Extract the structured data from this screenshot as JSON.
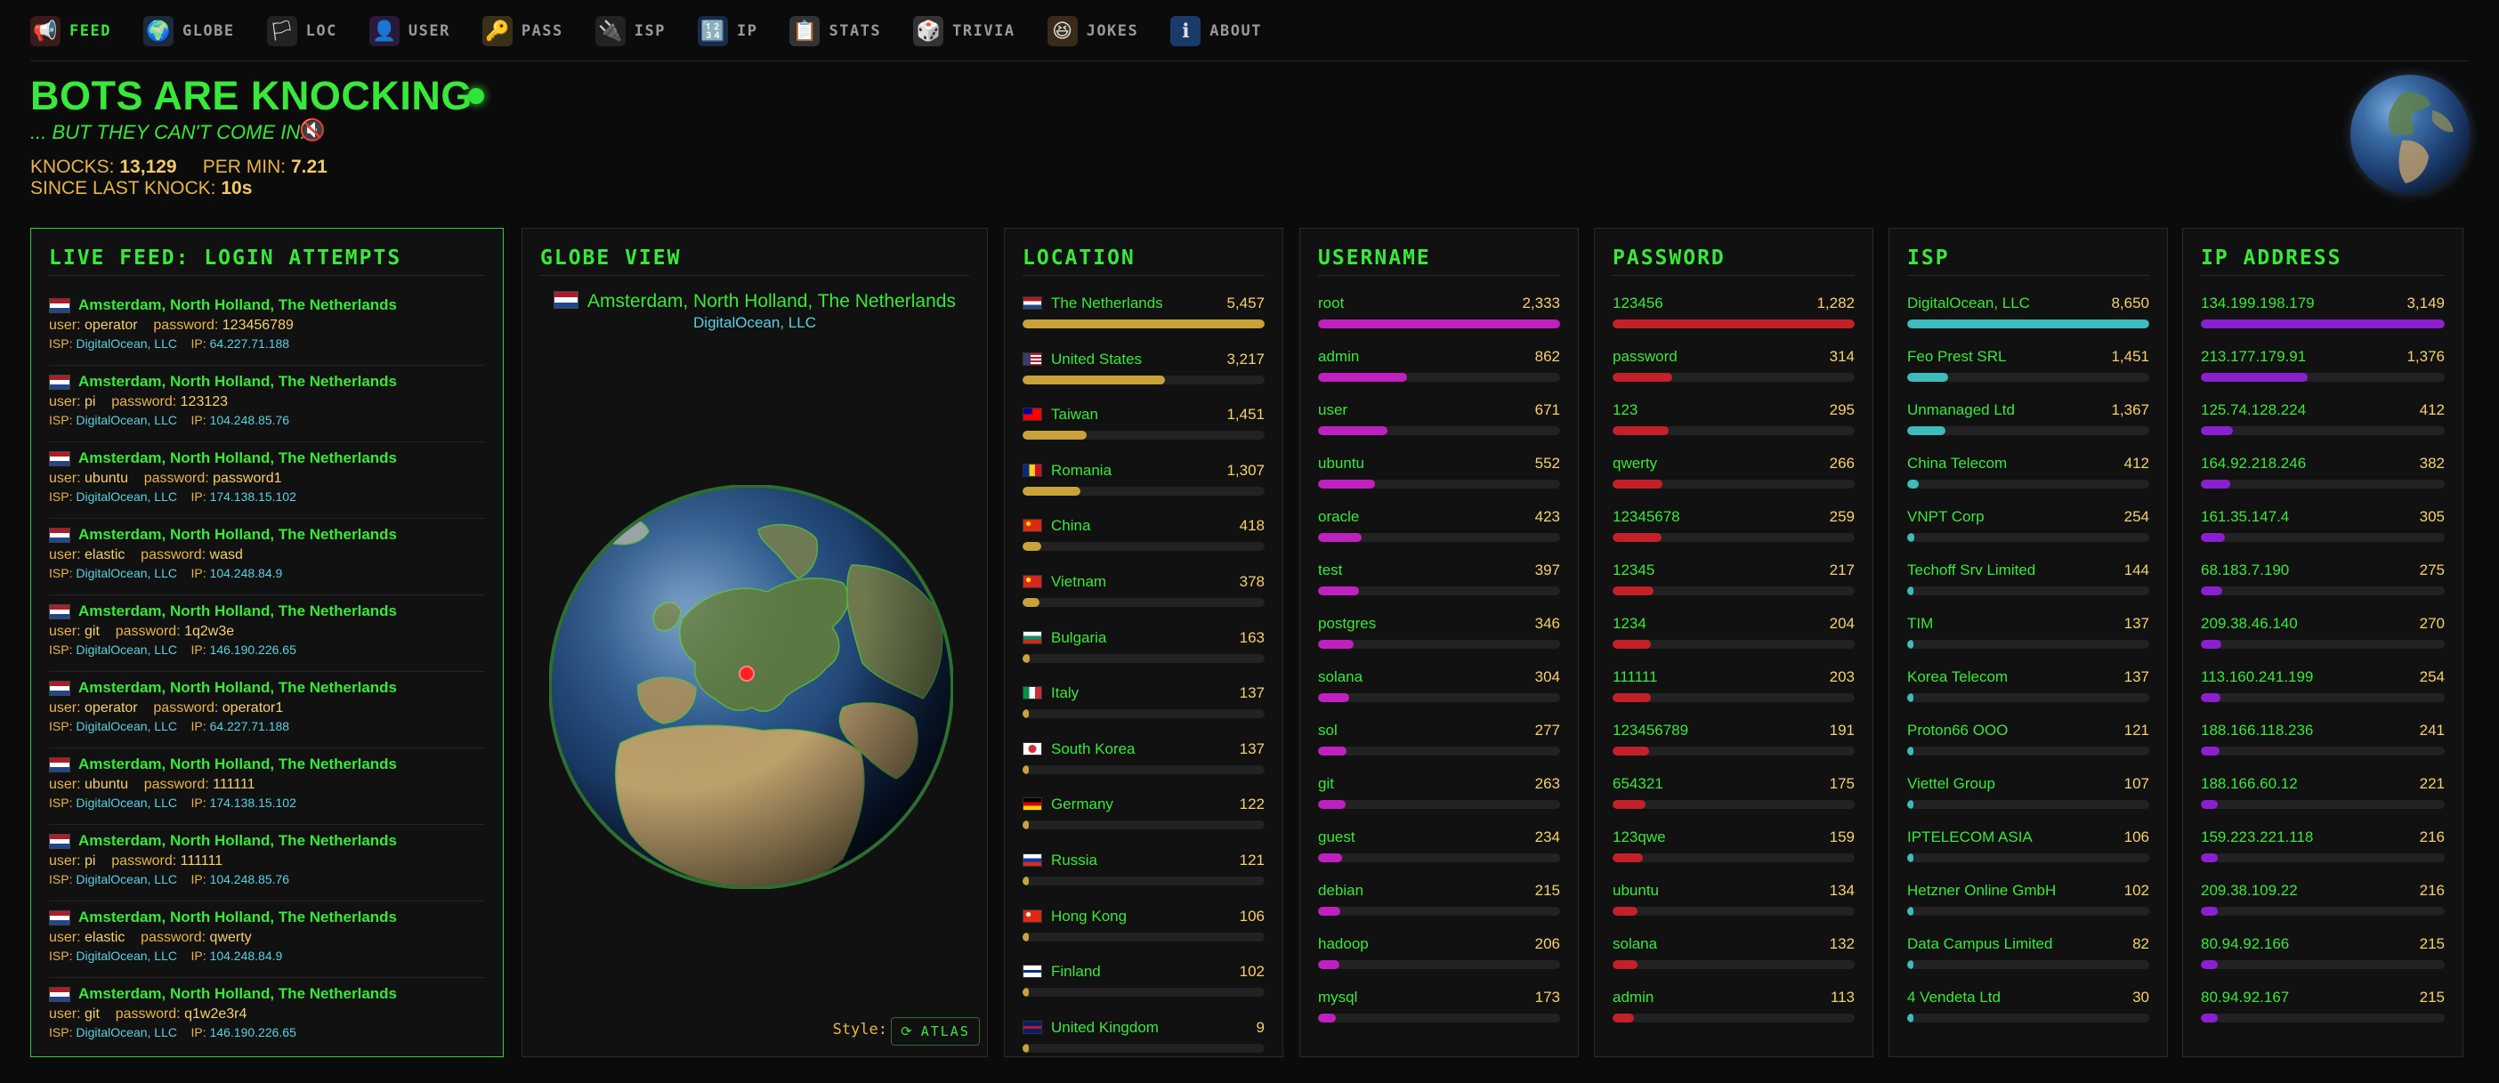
{
  "nav": [
    {
      "label": "FEED",
      "icon": "megaphone-icon",
      "glyph": "📢",
      "active": true
    },
    {
      "label": "GLOBE",
      "icon": "globe-icon",
      "glyph": "🌍"
    },
    {
      "label": "LOC",
      "icon": "flag-icon",
      "glyph": "🏳"
    },
    {
      "label": "USER",
      "icon": "user-icon",
      "glyph": "👤"
    },
    {
      "label": "PASS",
      "icon": "key-icon",
      "glyph": "🔑"
    },
    {
      "label": "ISP",
      "icon": "plug-icon",
      "glyph": "🔌"
    },
    {
      "label": "IP",
      "icon": "numbers-icon",
      "glyph": "🔢"
    },
    {
      "label": "STATS",
      "icon": "clipboard-icon",
      "glyph": "📋"
    },
    {
      "label": "TRIVIA",
      "icon": "dice-icon",
      "glyph": "🎲"
    },
    {
      "label": "JOKES",
      "icon": "laugh-icon",
      "glyph": "😆"
    },
    {
      "label": "ABOUT",
      "icon": "info-icon",
      "glyph": "ℹ"
    }
  ],
  "hero": {
    "title": "BOTS ARE KNOCKING",
    "subtitle": "... BUT THEY CAN'T COME IN.",
    "knocks_label": "KNOCKS:",
    "knocks": "13,129",
    "permin_label": "PER MIN:",
    "permin": "7.21",
    "since_label": "SINCE LAST KNOCK:",
    "since": "10s"
  },
  "feed": {
    "title": "LIVE FEED: LOGIN ATTEMPTS",
    "user_label": "user:",
    "password_label": "password:",
    "isp_label": "ISP:",
    "ip_label": "IP:",
    "items": [
      {
        "loc": "Amsterdam, North Holland, The Netherlands",
        "user": "operator",
        "password": "123456789",
        "isp": "DigitalOcean, LLC",
        "ip": "64.227.71.188"
      },
      {
        "loc": "Amsterdam, North Holland, The Netherlands",
        "user": "pi",
        "password": "123123",
        "isp": "DigitalOcean, LLC",
        "ip": "104.248.85.76"
      },
      {
        "loc": "Amsterdam, North Holland, The Netherlands",
        "user": "ubuntu",
        "password": "password1",
        "isp": "DigitalOcean, LLC",
        "ip": "174.138.15.102"
      },
      {
        "loc": "Amsterdam, North Holland, The Netherlands",
        "user": "elastic",
        "password": "wasd",
        "isp": "DigitalOcean, LLC",
        "ip": "104.248.84.9"
      },
      {
        "loc": "Amsterdam, North Holland, The Netherlands",
        "user": "git",
        "password": "1q2w3e",
        "isp": "DigitalOcean, LLC",
        "ip": "146.190.226.65"
      },
      {
        "loc": "Amsterdam, North Holland, The Netherlands",
        "user": "operator",
        "password": "operator1",
        "isp": "DigitalOcean, LLC",
        "ip": "64.227.71.188"
      },
      {
        "loc": "Amsterdam, North Holland, The Netherlands",
        "user": "ubuntu",
        "password": "111111",
        "isp": "DigitalOcean, LLC",
        "ip": "174.138.15.102"
      },
      {
        "loc": "Amsterdam, North Holland, The Netherlands",
        "user": "pi",
        "password": "111111",
        "isp": "DigitalOcean, LLC",
        "ip": "104.248.85.76"
      },
      {
        "loc": "Amsterdam, North Holland, The Netherlands",
        "user": "elastic",
        "password": "qwerty",
        "isp": "DigitalOcean, LLC",
        "ip": "104.248.84.9"
      },
      {
        "loc": "Amsterdam, North Holland, The Netherlands",
        "user": "git",
        "password": "q1w2e3r4",
        "isp": "DigitalOcean, LLC",
        "ip": "146.190.226.65"
      }
    ]
  },
  "globe": {
    "title": "GLOBE VIEW",
    "location": "Amsterdam, North Holland, The Netherlands",
    "isp": "DigitalOcean, LLC",
    "style_label": "Style:",
    "style_value": "ATLAS"
  },
  "location": {
    "title": "LOCATION",
    "color": "#c9a23a",
    "items": [
      {
        "label": "The Netherlands",
        "count": 5457,
        "flag": [
          "#ae1c28",
          "#ffffff",
          "#21468b"
        ],
        "dir": "h"
      },
      {
        "label": "United States",
        "count": 3217,
        "flag": [
          "#b22234",
          "#ffffff",
          "#3c3b6e"
        ],
        "dir": "us"
      },
      {
        "label": "Taiwan",
        "count": 1451,
        "flag": [
          "#fe0000",
          "#000095"
        ],
        "dir": "tw"
      },
      {
        "label": "Romania",
        "count": 1307,
        "flag": [
          "#002b7f",
          "#fcd116",
          "#ce1126"
        ],
        "dir": "v"
      },
      {
        "label": "China",
        "count": 418,
        "flag": [
          "#de2910",
          "#ffde00"
        ],
        "dir": "cn"
      },
      {
        "label": "Vietnam",
        "count": 378,
        "flag": [
          "#da251d",
          "#ffff00"
        ],
        "dir": "cn"
      },
      {
        "label": "Bulgaria",
        "count": 163,
        "flag": [
          "#ffffff",
          "#00966e",
          "#d62612"
        ],
        "dir": "h"
      },
      {
        "label": "Italy",
        "count": 137,
        "flag": [
          "#009246",
          "#ffffff",
          "#ce2b37"
        ],
        "dir": "v"
      },
      {
        "label": "South Korea",
        "count": 137,
        "flag": [
          "#ffffff",
          "#cd2e3a"
        ],
        "dir": "kr"
      },
      {
        "label": "Germany",
        "count": 122,
        "flag": [
          "#000000",
          "#dd0000",
          "#ffce00"
        ],
        "dir": "h"
      },
      {
        "label": "Russia",
        "count": 121,
        "flag": [
          "#ffffff",
          "#0039a6",
          "#d52b1e"
        ],
        "dir": "h"
      },
      {
        "label": "Hong Kong",
        "count": 106,
        "flag": [
          "#de2910",
          "#ffffff"
        ],
        "dir": "cn"
      },
      {
        "label": "Finland",
        "count": 102,
        "flag": [
          "#ffffff",
          "#003580"
        ],
        "dir": "fi"
      },
      {
        "label": "United Kingdom",
        "count": 9,
        "flag": [
          "#012169",
          "#c8102e"
        ],
        "dir": "gb"
      }
    ]
  },
  "username": {
    "title": "USERNAME",
    "color": "#c020c0",
    "items": [
      {
        "label": "root",
        "count": 2333
      },
      {
        "label": "admin",
        "count": 862
      },
      {
        "label": "user",
        "count": 671
      },
      {
        "label": "ubuntu",
        "count": 552
      },
      {
        "label": "oracle",
        "count": 423
      },
      {
        "label": "test",
        "count": 397
      },
      {
        "label": "postgres",
        "count": 346
      },
      {
        "label": "solana",
        "count": 304
      },
      {
        "label": "sol",
        "count": 277
      },
      {
        "label": "git",
        "count": 263
      },
      {
        "label": "guest",
        "count": 234
      },
      {
        "label": "debian",
        "count": 215
      },
      {
        "label": "hadoop",
        "count": 206
      },
      {
        "label": "mysql",
        "count": 173
      }
    ]
  },
  "password": {
    "title": "PASSWORD",
    "color": "#c4202a",
    "items": [
      {
        "label": "123456",
        "count": 1282
      },
      {
        "label": "password",
        "count": 314
      },
      {
        "label": "123",
        "count": 295
      },
      {
        "label": "qwerty",
        "count": 266
      },
      {
        "label": "12345678",
        "count": 259
      },
      {
        "label": "12345",
        "count": 217
      },
      {
        "label": "1234",
        "count": 204
      },
      {
        "label": "111111",
        "count": 203
      },
      {
        "label": "123456789",
        "count": 191
      },
      {
        "label": "654321",
        "count": 175
      },
      {
        "label": "123qwe",
        "count": 159
      },
      {
        "label": "ubuntu",
        "count": 134
      },
      {
        "label": "solana",
        "count": 132
      },
      {
        "label": "admin",
        "count": 113
      }
    ]
  },
  "isp": {
    "title": "ISP",
    "color": "#3cbcbc",
    "items": [
      {
        "label": "DigitalOcean, LLC",
        "count": 8650
      },
      {
        "label": "Feo Prest SRL",
        "count": 1451
      },
      {
        "label": "Unmanaged Ltd",
        "count": 1367
      },
      {
        "label": "China Telecom",
        "count": 412
      },
      {
        "label": "VNPT Corp",
        "count": 254
      },
      {
        "label": "Techoff Srv Limited",
        "count": 144
      },
      {
        "label": "TIM",
        "count": 137
      },
      {
        "label": "Korea Telecom",
        "count": 137
      },
      {
        "label": "Proton66 OOO",
        "count": 121
      },
      {
        "label": "Viettel Group",
        "count": 107
      },
      {
        "label": "IPTELECOM ASIA",
        "count": 106
      },
      {
        "label": "Hetzner Online GmbH",
        "count": 102
      },
      {
        "label": "Data Campus Limited",
        "count": 82
      },
      {
        "label": "4 Vendeta Ltd",
        "count": 30
      }
    ]
  },
  "ip": {
    "title": "IP ADDRESS",
    "color": "#8a20d0",
    "items": [
      {
        "label": "134.199.198.179",
        "count": 3149
      },
      {
        "label": "213.177.179.91",
        "count": 1376
      },
      {
        "label": "125.74.128.224",
        "count": 412
      },
      {
        "label": "164.92.218.246",
        "count": 382
      },
      {
        "label": "161.35.147.4",
        "count": 305
      },
      {
        "label": "68.183.7.190",
        "count": 275
      },
      {
        "label": "209.38.46.140",
        "count": 270
      },
      {
        "label": "113.160.241.199",
        "count": 254
      },
      {
        "label": "188.166.118.236",
        "count": 241
      },
      {
        "label": "188.166.60.12",
        "count": 221
      },
      {
        "label": "159.223.221.118",
        "count": 216
      },
      {
        "label": "209.38.109.22",
        "count": 216
      },
      {
        "label": "80.94.92.166",
        "count": 215
      },
      {
        "label": "80.94.92.167",
        "count": 215
      }
    ]
  }
}
